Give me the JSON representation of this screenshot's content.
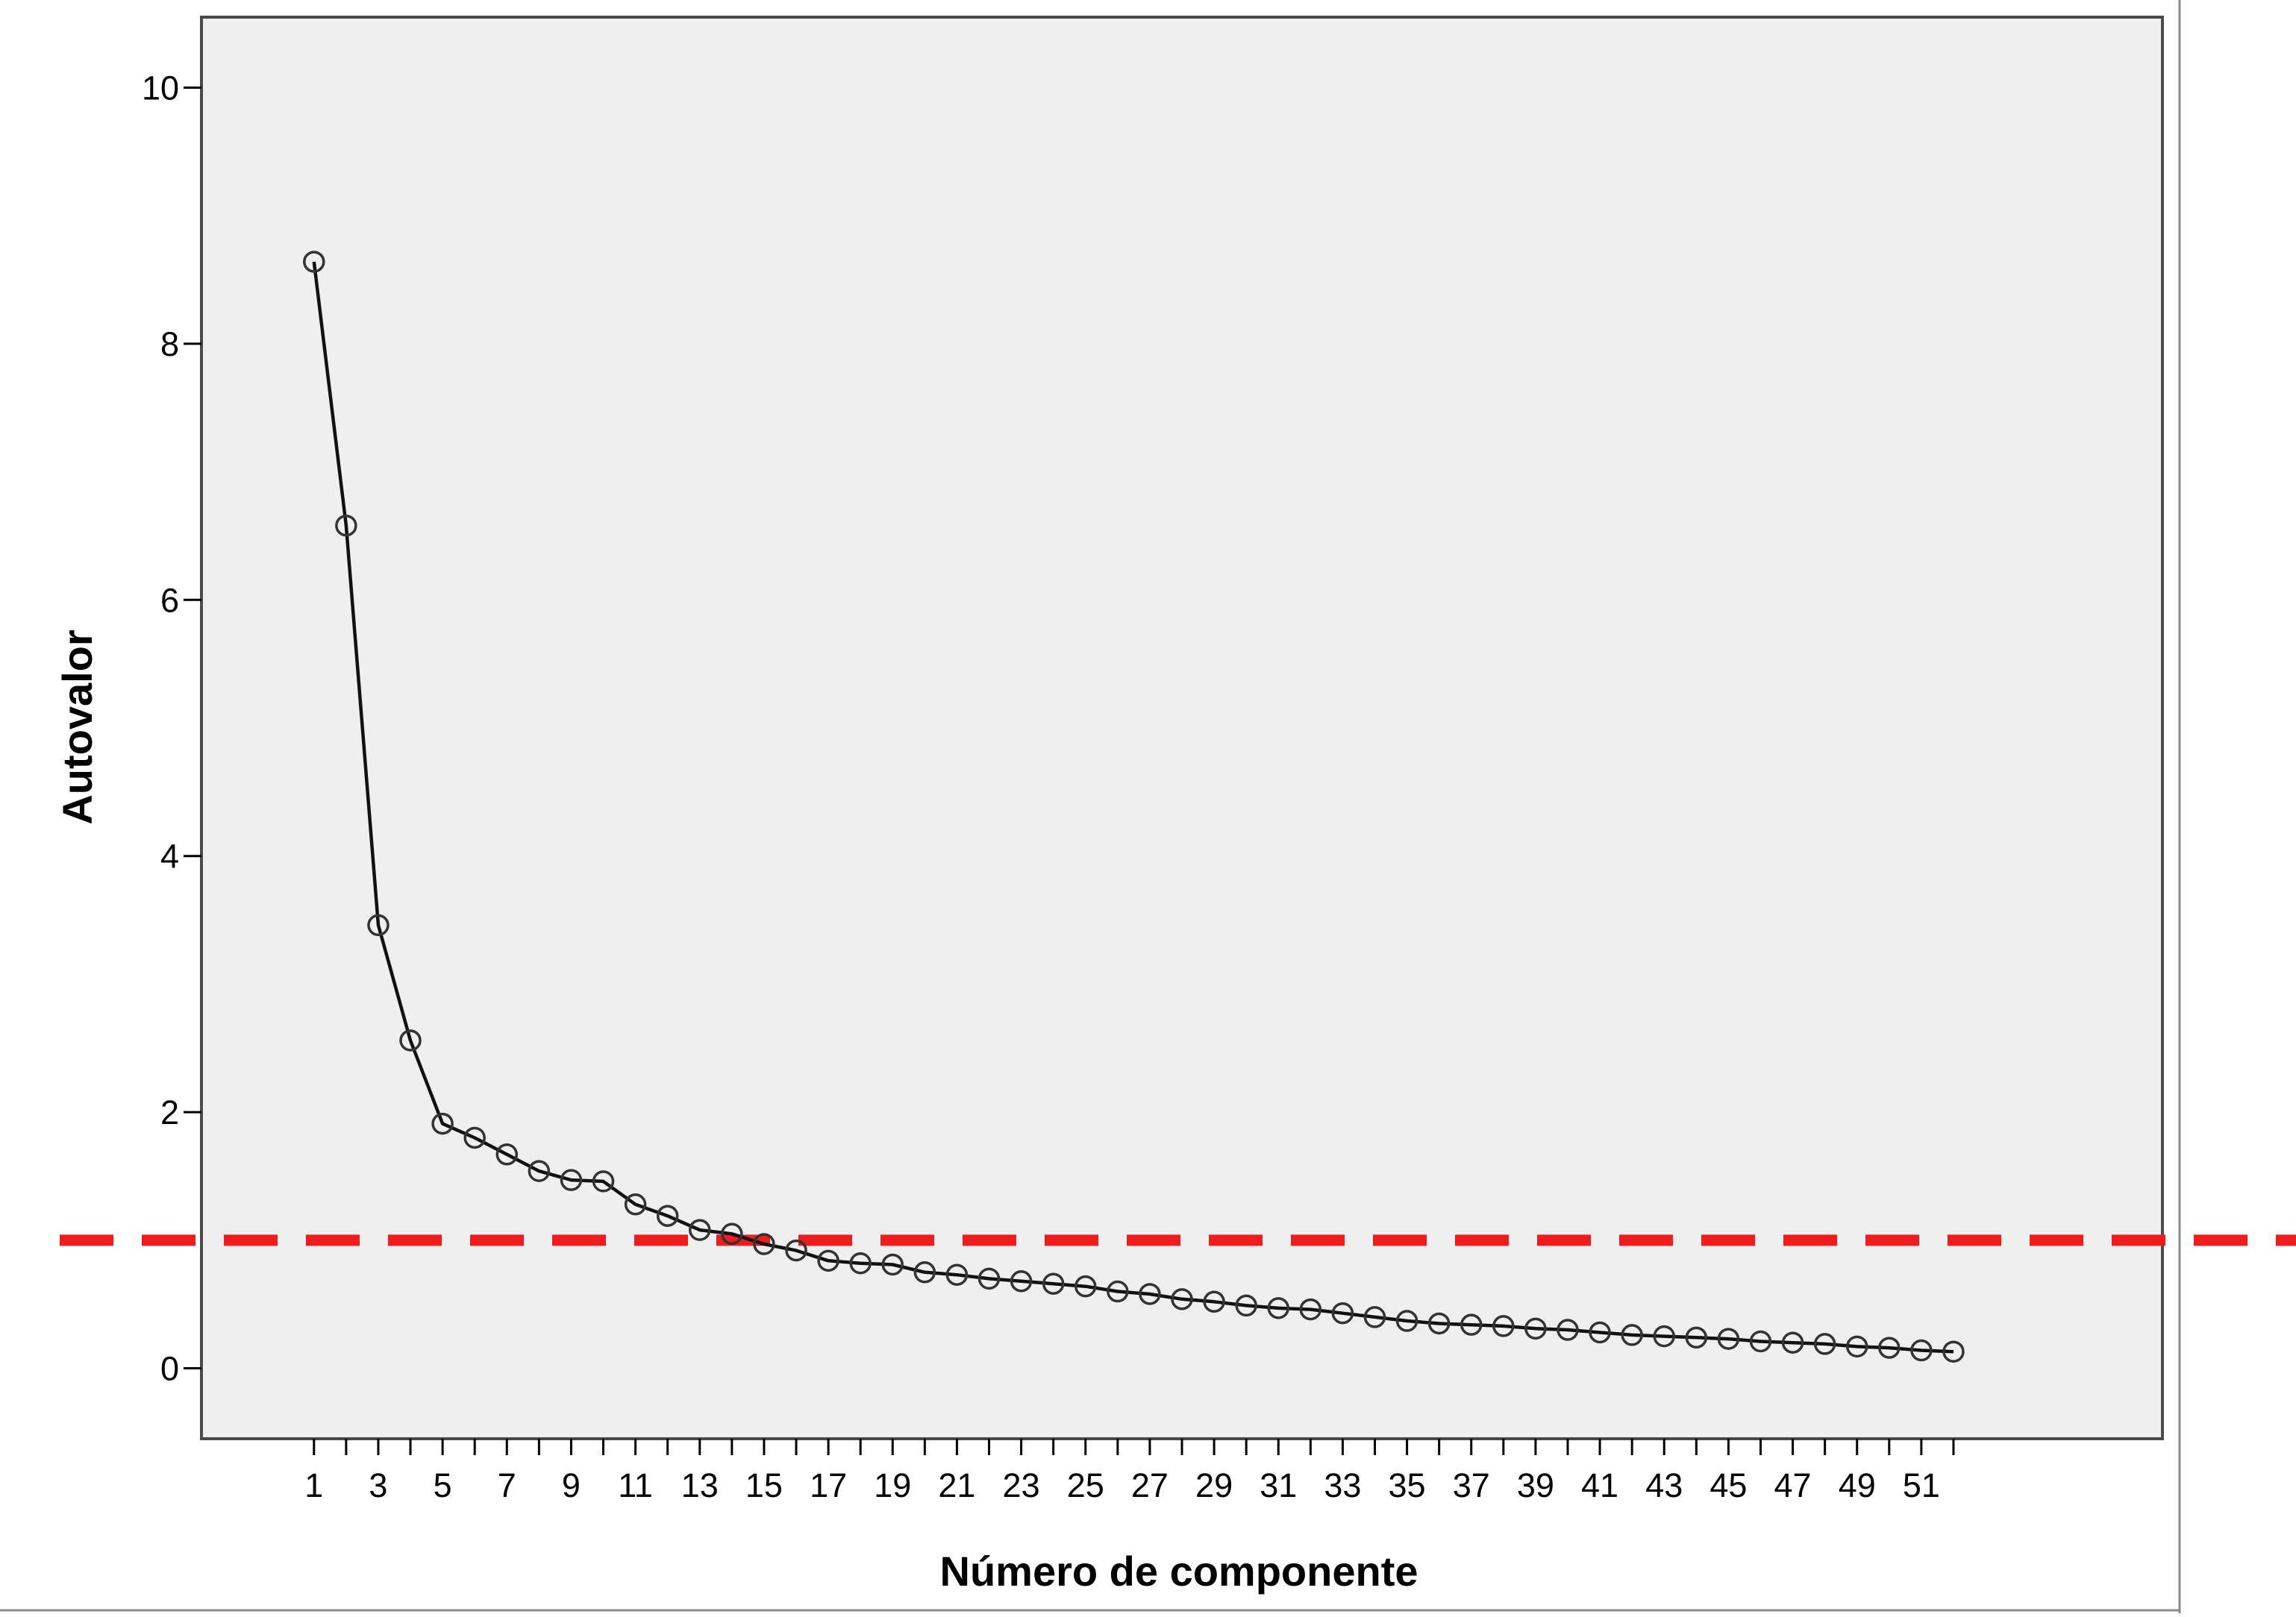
{
  "chart_data": {
    "type": "line",
    "title": "",
    "xlabel": "Número de componente",
    "ylabel": "Autovalor",
    "x": [
      1,
      2,
      3,
      4,
      5,
      6,
      7,
      8,
      9,
      10,
      11,
      12,
      13,
      14,
      15,
      16,
      17,
      18,
      19,
      20,
      21,
      22,
      23,
      24,
      25,
      26,
      27,
      28,
      29,
      30,
      31,
      32,
      33,
      34,
      35,
      36,
      37,
      38,
      39,
      40,
      41,
      42,
      43,
      44,
      45,
      46,
      47,
      48,
      49,
      50,
      51,
      52
    ],
    "series": [
      {
        "values": [
          8.64,
          6.58,
          3.46,
          2.56,
          1.91,
          1.8,
          1.67,
          1.54,
          1.47,
          1.46,
          1.28,
          1.19,
          1.08,
          1.05,
          0.97,
          0.92,
          0.84,
          0.82,
          0.81,
          0.75,
          0.73,
          0.7,
          0.68,
          0.66,
          0.64,
          0.6,
          0.58,
          0.54,
          0.52,
          0.49,
          0.47,
          0.46,
          0.43,
          0.4,
          0.37,
          0.35,
          0.34,
          0.33,
          0.31,
          0.3,
          0.28,
          0.26,
          0.25,
          0.24,
          0.23,
          0.21,
          0.2,
          0.19,
          0.17,
          0.16,
          0.14,
          0.13
        ]
      }
    ],
    "x_tick_labels": [
      "1",
      "3",
      "5",
      "7",
      "9",
      "11",
      "13",
      "15",
      "17",
      "19",
      "21",
      "23",
      "25",
      "27",
      "29",
      "31",
      "33",
      "35",
      "37",
      "39",
      "41",
      "43",
      "45",
      "47",
      "49",
      "51"
    ],
    "y_tick_labels": [
      "0",
      "2",
      "4",
      "6",
      "8",
      "10"
    ],
    "xlim": [
      -2.5,
      58.5
    ],
    "ylim": [
      -0.55,
      10.55
    ],
    "reference_line": {
      "y": 1.0,
      "style": "dashed",
      "color": "#ee1c1c"
    },
    "grid": false,
    "legend": "none",
    "colors": {
      "line": "#111111",
      "marker": "#333333",
      "plot_background": "#efefef",
      "frame": "#4a4a4a"
    }
  }
}
